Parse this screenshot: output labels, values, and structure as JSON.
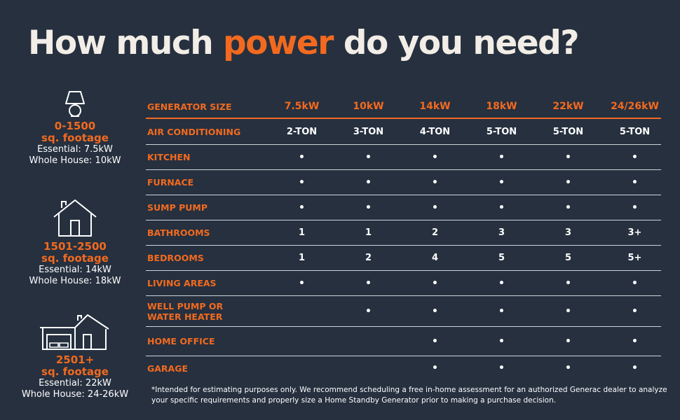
{
  "title": {
    "part1": "How much ",
    "accent": "power",
    "part2": " do you need?"
  },
  "sidebar": [
    {
      "icon": "lamp-icon",
      "range": "0-1500",
      "unit": "sq. footage",
      "essential": "Essential: 7.5kW",
      "whole": "Whole House: 10kW"
    },
    {
      "icon": "house-icon",
      "range": "1501-2500",
      "unit": "sq. footage",
      "essential": "Essential: 14kW",
      "whole": "Whole House: 18kW"
    },
    {
      "icon": "house-garage-icon",
      "range": "2501+",
      "unit": "sq. footage",
      "essential": "Essential: 22kW",
      "whole": "Whole House: 24-26kW"
    }
  ],
  "table": {
    "header": {
      "label": "GENERATOR SIZE",
      "sizes": [
        "7.5kW",
        "10kW",
        "14kW",
        "18kW",
        "22kW",
        "24/26kW"
      ]
    },
    "rows": [
      {
        "label": "AIR CONDITIONING",
        "values": [
          "2-TON",
          "3-TON",
          "4-TON",
          "5-TON",
          "5-TON",
          "5-TON"
        ]
      },
      {
        "label": "KITCHEN",
        "values": [
          "•",
          "•",
          "•",
          "•",
          "•",
          "•"
        ]
      },
      {
        "label": "FURNACE",
        "values": [
          "•",
          "•",
          "•",
          "•",
          "•",
          "•"
        ]
      },
      {
        "label": "SUMP PUMP",
        "values": [
          "•",
          "•",
          "•",
          "•",
          "•",
          "•"
        ]
      },
      {
        "label": "BATHROOMS",
        "values": [
          "1",
          "1",
          "2",
          "3",
          "3",
          "3+"
        ]
      },
      {
        "label": "BEDROOMS",
        "values": [
          "1",
          "2",
          "4",
          "5",
          "5",
          "5+"
        ]
      },
      {
        "label": "LIVING AREAS",
        "values": [
          "•",
          "•",
          "•",
          "•",
          "•",
          "•"
        ]
      },
      {
        "label": "WELL PUMP OR\nWATER HEATER",
        "values": [
          "",
          "•",
          "•",
          "•",
          "•",
          "•"
        ]
      },
      {
        "label": "HOME OFFICE",
        "values": [
          "",
          "",
          "•",
          "•",
          "•",
          "•"
        ]
      },
      {
        "label": "GARAGE",
        "values": [
          "",
          "",
          "•",
          "•",
          "•",
          "•"
        ]
      }
    ]
  },
  "footnote": "*Intended for estimating purposes only. We recommend scheduling a free in-home assessment for an authorized Generac dealer to analyze your specific requirements and properly size a Home Standby Generator prior to making a purchase decision.",
  "colors": {
    "background": "#26303f",
    "accent": "#f26a1f",
    "text": "#ffffff"
  }
}
